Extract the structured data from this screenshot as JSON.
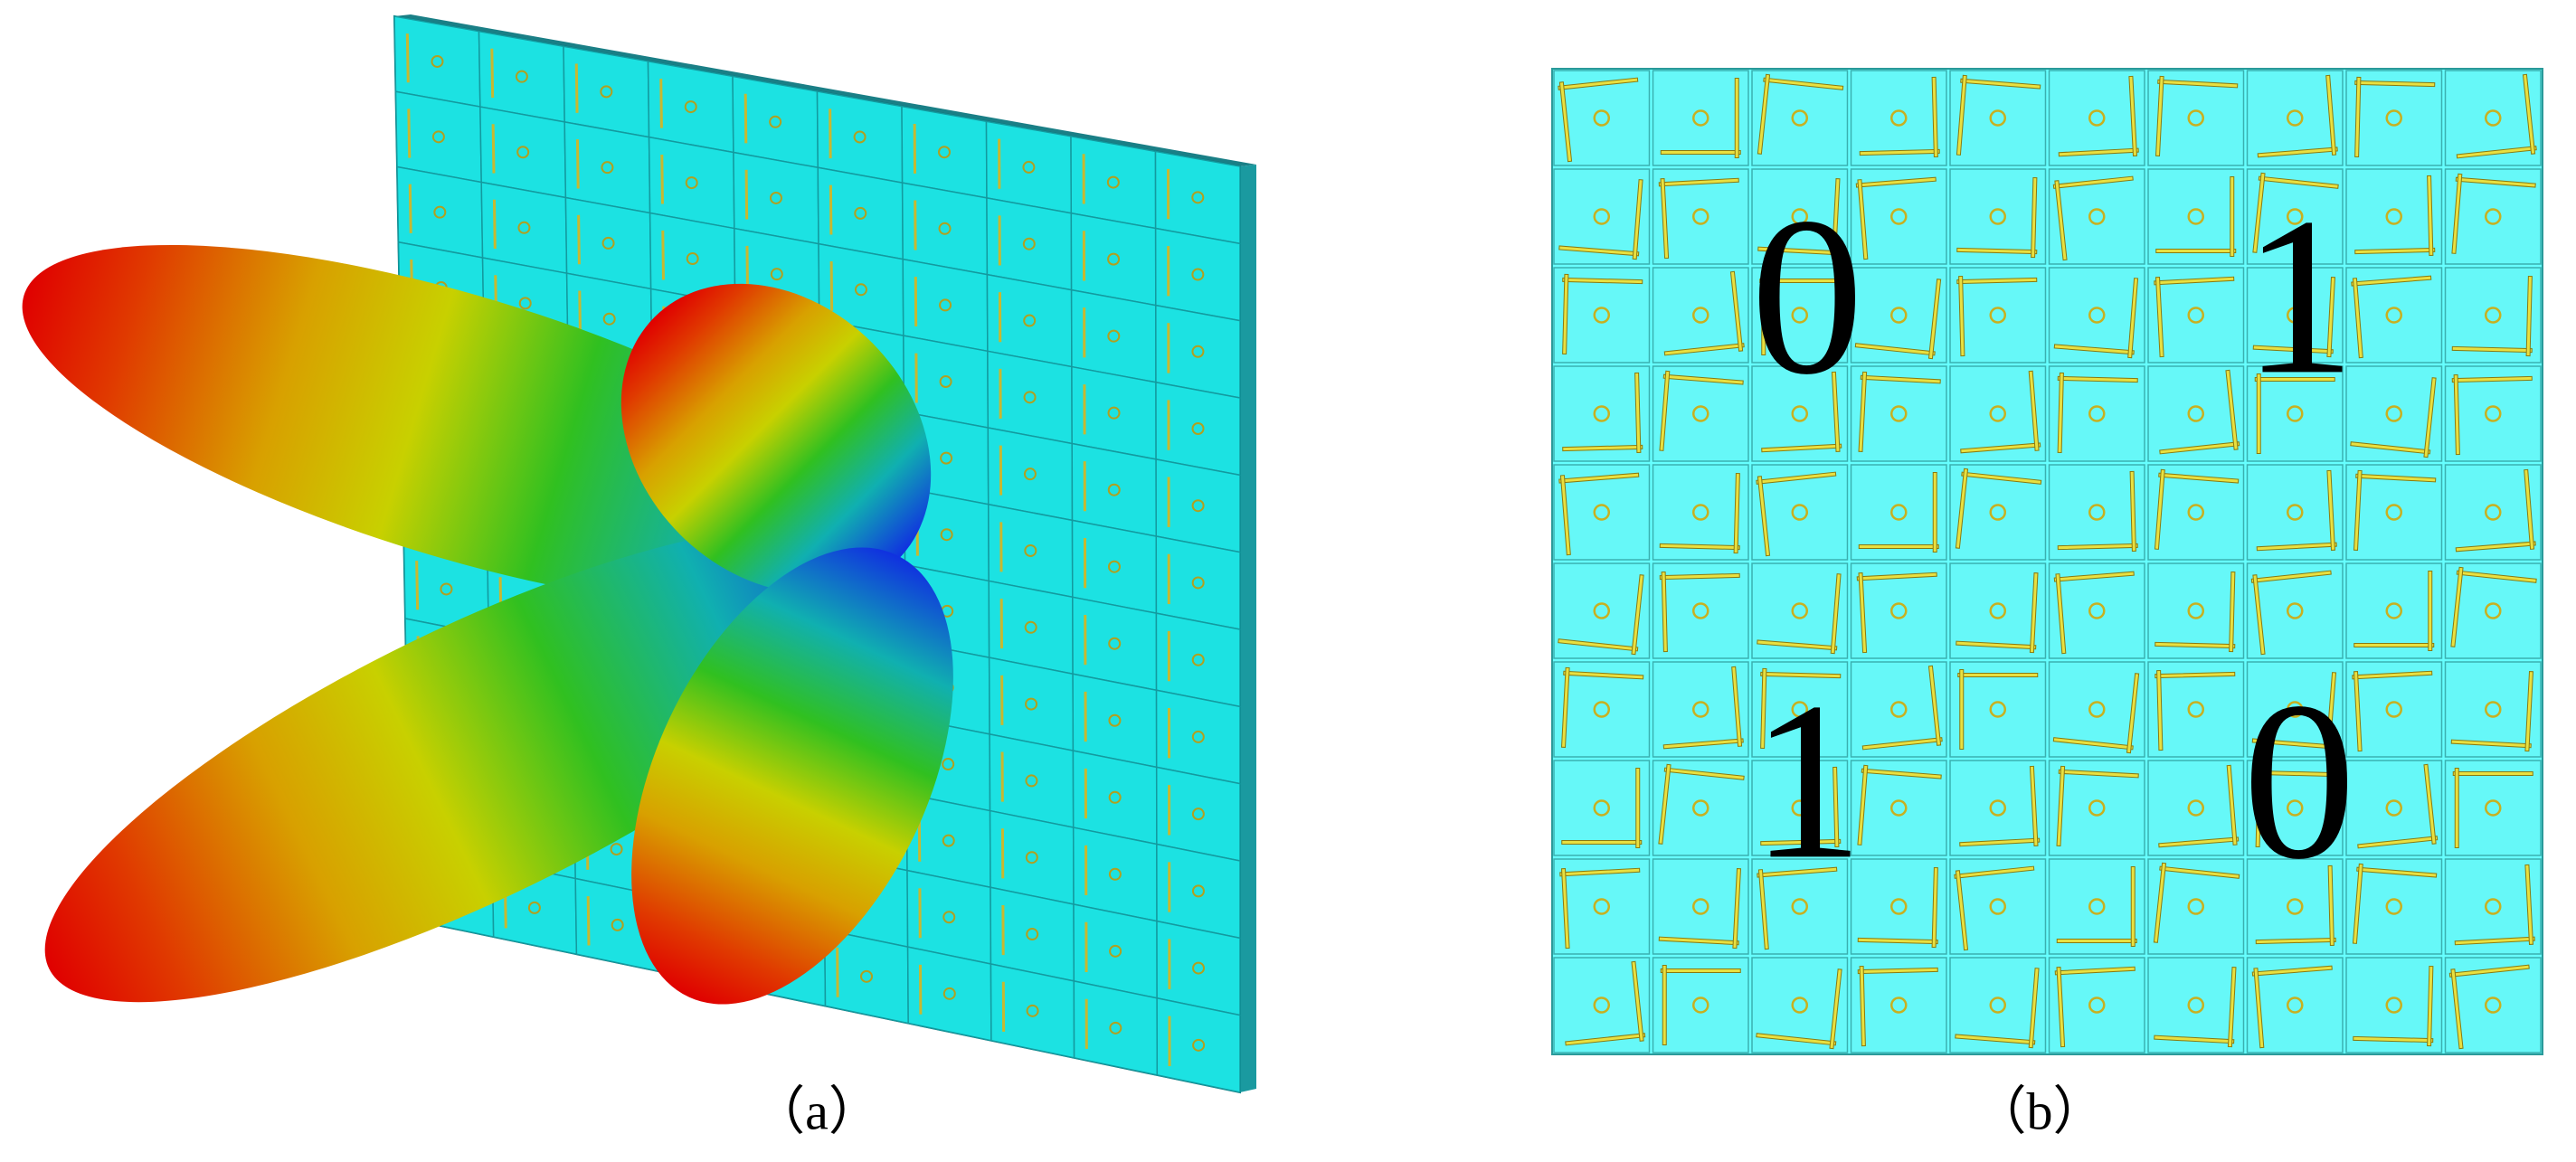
{
  "panels": [
    {
      "caption": "（a）"
    },
    {
      "caption": "（b）",
      "labels": [
        "0",
        "1",
        "1",
        "0"
      ]
    }
  ]
}
